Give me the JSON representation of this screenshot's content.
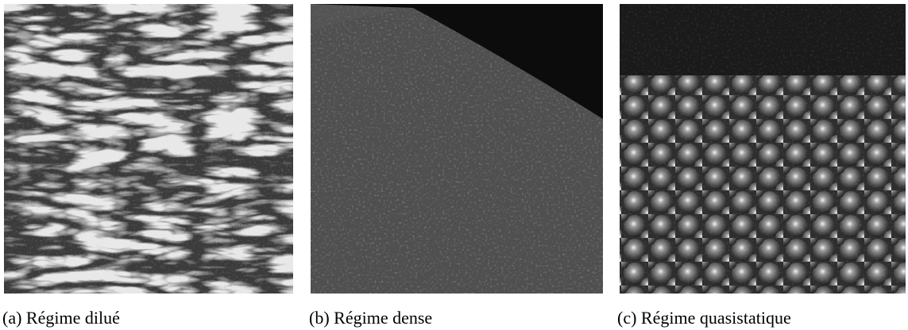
{
  "figure": {
    "panels": [
      {
        "label": "(a)",
        "caption": "Régime dilué"
      },
      {
        "label": "(b)",
        "caption": "Régime dense"
      },
      {
        "label": "(c)",
        "caption": "Régime quasistatique"
      }
    ]
  }
}
